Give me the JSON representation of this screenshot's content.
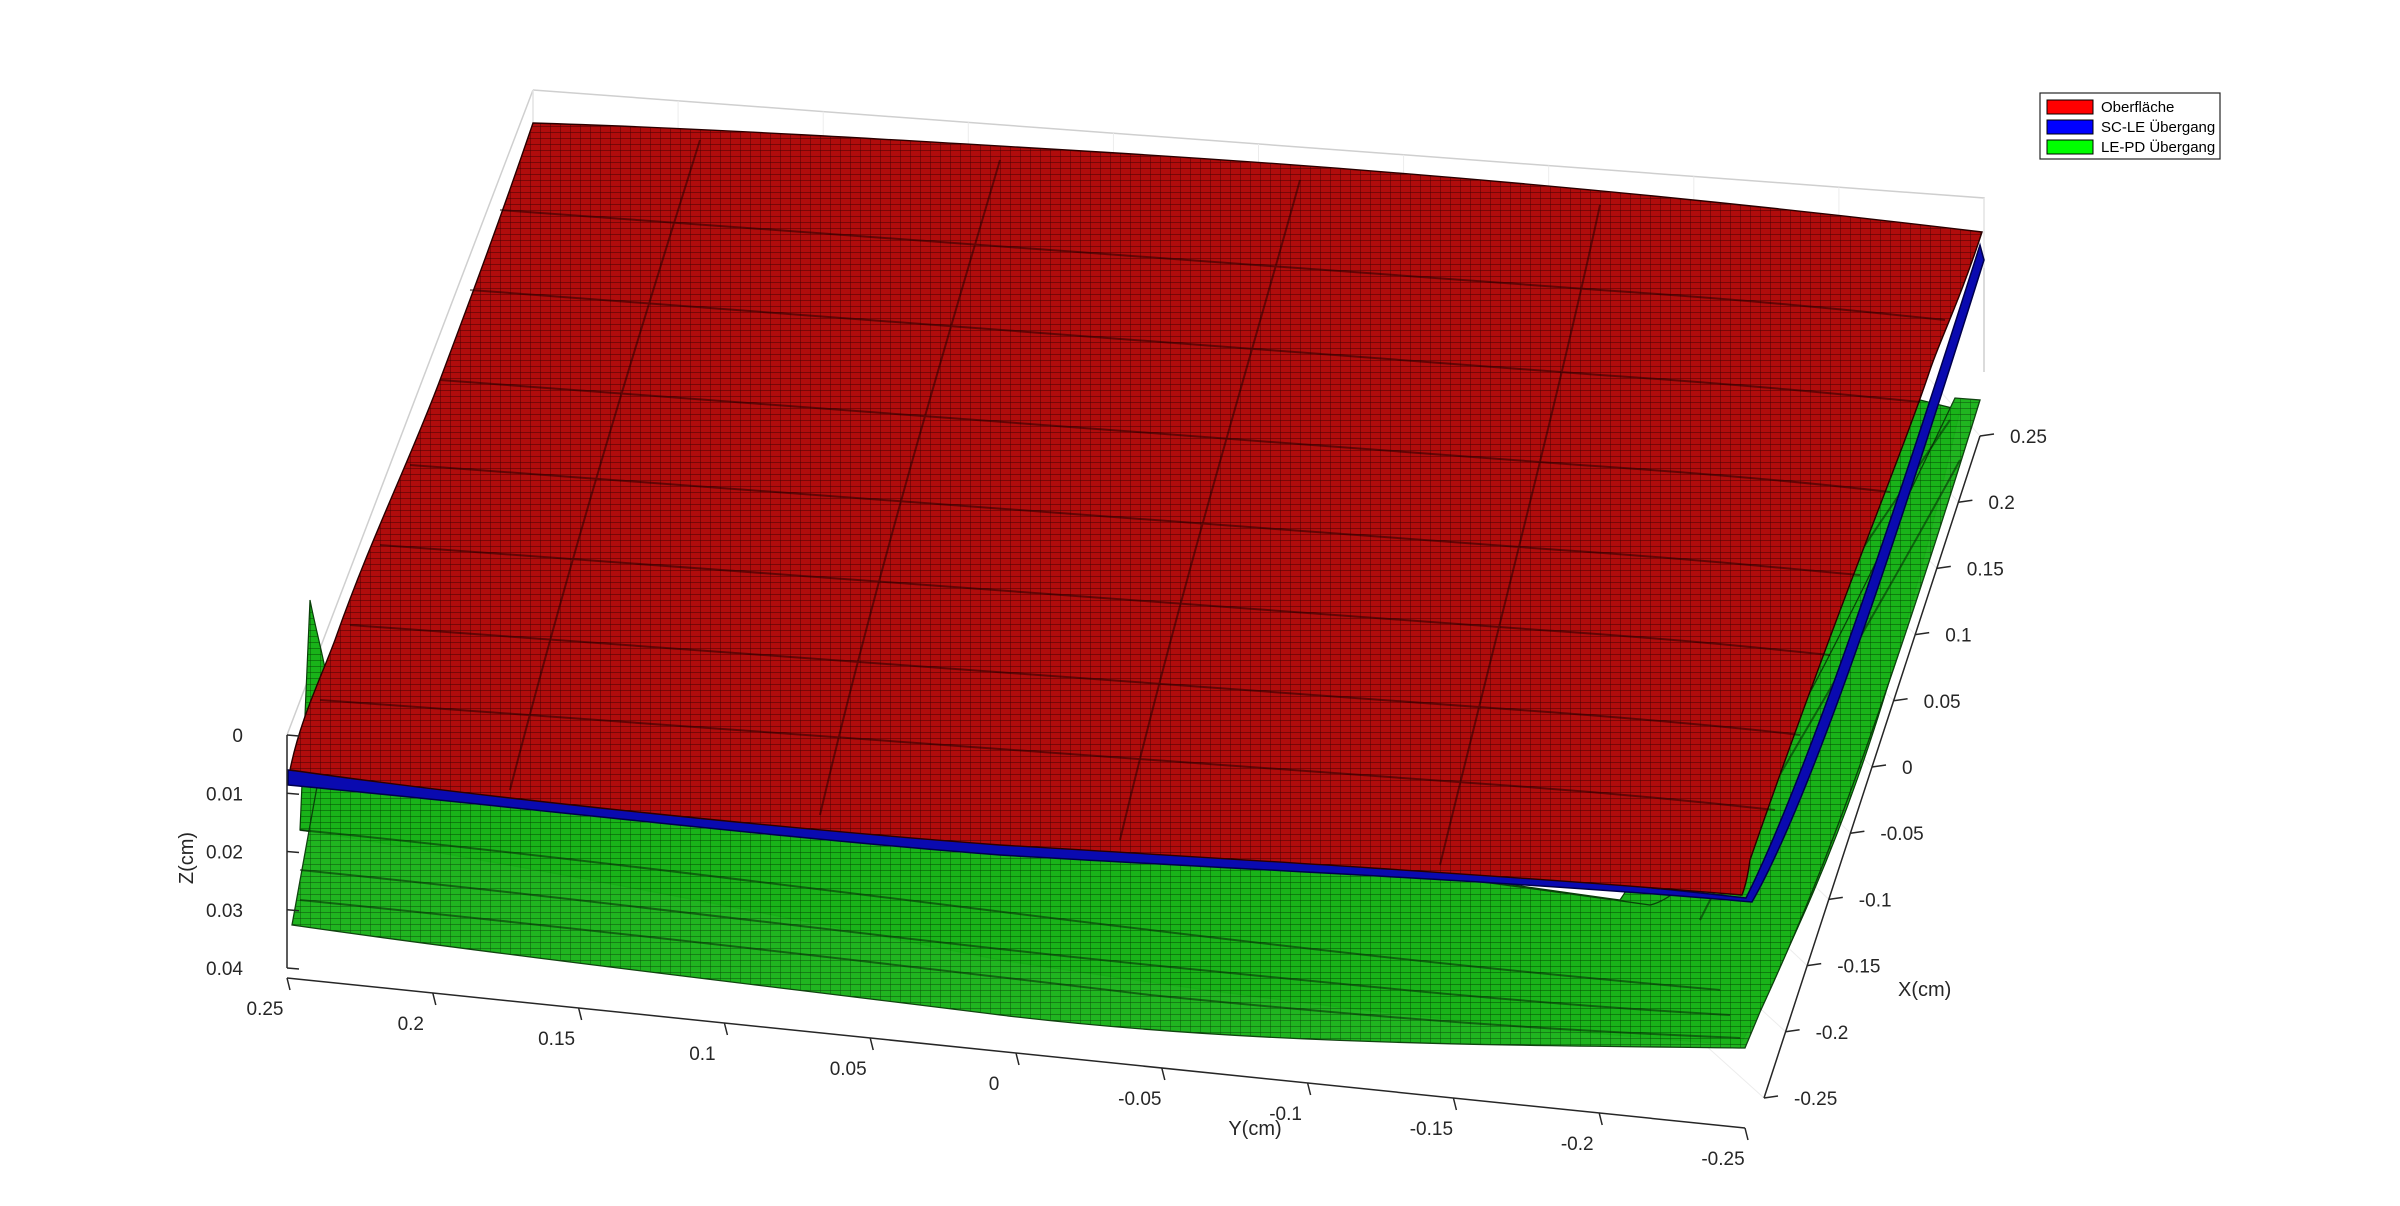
{
  "chart_data": {
    "type": "surface3d",
    "title": "",
    "xlabel": "X(cm)",
    "ylabel": "Y(cm)",
    "zlabel": "Z(cm)",
    "xlim": [
      -0.25,
      0.25
    ],
    "ylim": [
      -0.25,
      0.25
    ],
    "zlim": [
      0,
      0.04
    ],
    "z_direction": "reversed",
    "x_ticks": [
      "-0.25",
      "-0.2",
      "-0.15",
      "-0.1",
      "-0.05",
      "0",
      "0.05",
      "0.1",
      "0.15",
      "0.2",
      "0.25"
    ],
    "y_ticks": [
      "0.25",
      "0.2",
      "0.15",
      "0.1",
      "0.05",
      "0",
      "-0.05",
      "-0.1",
      "-0.15",
      "-0.2",
      "-0.25"
    ],
    "z_ticks": [
      "0",
      "0.01",
      "0.02",
      "0.03",
      "0.04"
    ],
    "grid": true,
    "legend_position": "top-right",
    "series": [
      {
        "name": "Oberfläche",
        "color": "#ff0000",
        "mean_depth": 0.008
      },
      {
        "name": "SC-LE Übergang",
        "color": "#0000ff",
        "mean_depth": 0.0085
      },
      {
        "name": "LE-PD Übergang",
        "color": "#00ff00",
        "mean_depth": 0.032
      }
    ]
  }
}
